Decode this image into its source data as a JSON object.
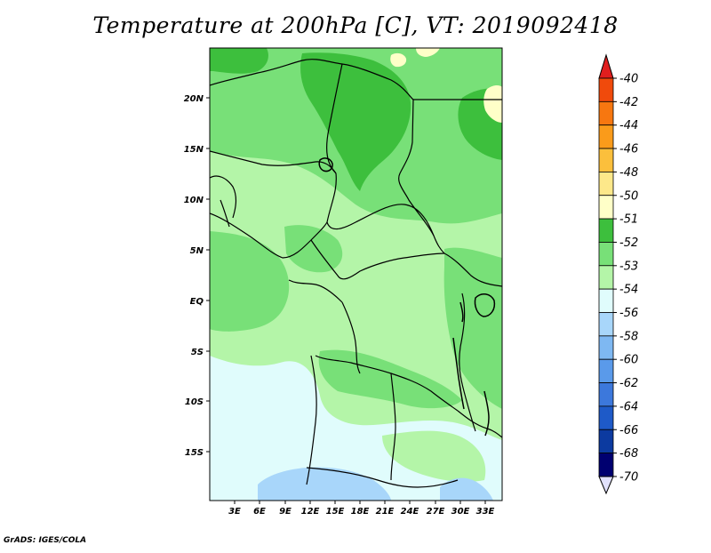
{
  "title": "Temperature at 200hPa [C], VT: 2019092418",
  "credit": "GrADS: IGES/COLA",
  "map": {
    "lat_labels": [
      "20N",
      "15N",
      "10N",
      "5N",
      "EQ",
      "5S",
      "10S",
      "15S"
    ],
    "lon_labels": [
      "3E",
      "6E",
      "9E",
      "12E",
      "15E",
      "18E",
      "21E",
      "24E",
      "27E",
      "30E",
      "33E"
    ]
  },
  "colorbar": {
    "labels": [
      "-40",
      "-42",
      "-44",
      "-46",
      "-48",
      "-50",
      "-51",
      "-52",
      "-53",
      "-54",
      "-56",
      "-58",
      "-60",
      "-62",
      "-64",
      "-66",
      "-68",
      "-70"
    ],
    "colors": [
      "#e01e1e",
      "#f04a0c",
      "#f77710",
      "#fa9b1a",
      "#fbbf3c",
      "#fde88a",
      "#ffffc8",
      "#3dbf3d",
      "#78e078",
      "#b4f5a8",
      "#e0fcfc",
      "#a8d6fa",
      "#7eb8f2",
      "#5a9aea",
      "#3c78dc",
      "#1e5ac8",
      "#0c3aa0",
      "#000070",
      "#e1e1fc"
    ]
  },
  "colors": {
    "dominant_north": "#78e078",
    "warm_core": "#3dbf3d",
    "light_band": "#b4f5a8",
    "south_cold": "#e0fcfc",
    "cold_patch": "#a8d6fa",
    "warm_patch": "#ffffc8"
  }
}
